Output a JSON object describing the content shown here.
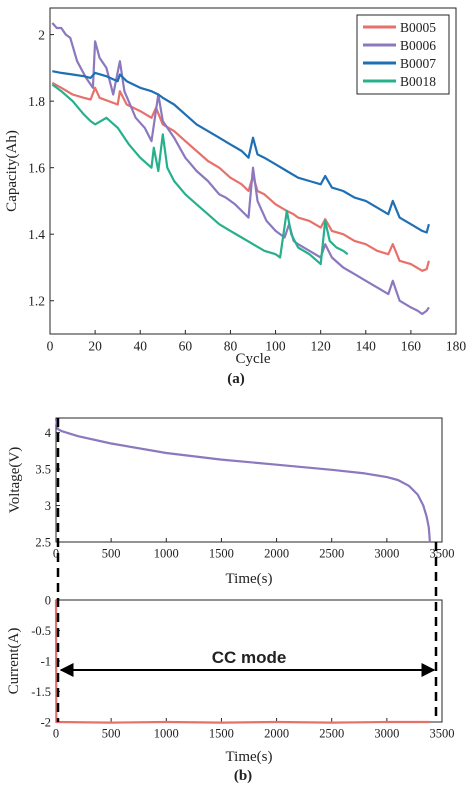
{
  "chart_data": [
    {
      "panel_label": "(a)",
      "type": "line",
      "xlabel": "Cycle",
      "ylabel": "Capacity(Ah)",
      "xlim": [
        0,
        180
      ],
      "ylim": [
        1.1,
        2.08
      ],
      "xticks": [
        0,
        20,
        40,
        60,
        80,
        100,
        120,
        140,
        160,
        180
      ],
      "yticks": [
        1.2,
        1.4,
        1.6,
        1.8,
        2
      ],
      "legend_position": "top-right",
      "series": [
        {
          "name": "B0005",
          "color": "#e8706a",
          "points": [
            [
              1,
              1.855
            ],
            [
              5,
              1.84
            ],
            [
              10,
              1.82
            ],
            [
              15,
              1.81
            ],
            [
              18,
              1.805
            ],
            [
              20,
              1.84
            ],
            [
              22,
              1.81
            ],
            [
              26,
              1.8
            ],
            [
              30,
              1.79
            ],
            [
              31,
              1.83
            ],
            [
              34,
              1.79
            ],
            [
              40,
              1.77
            ],
            [
              45,
              1.75
            ],
            [
              47,
              1.78
            ],
            [
              50,
              1.73
            ],
            [
              55,
              1.71
            ],
            [
              60,
              1.68
            ],
            [
              65,
              1.65
            ],
            [
              70,
              1.62
            ],
            [
              75,
              1.6
            ],
            [
              80,
              1.57
            ],
            [
              85,
              1.55
            ],
            [
              88,
              1.53
            ],
            [
              90,
              1.575
            ],
            [
              92,
              1.53
            ],
            [
              95,
              1.52
            ],
            [
              100,
              1.49
            ],
            [
              105,
              1.47
            ],
            [
              108,
              1.46
            ],
            [
              110,
              1.45
            ],
            [
              115,
              1.44
            ],
            [
              120,
              1.42
            ],
            [
              122,
              1.445
            ],
            [
              125,
              1.41
            ],
            [
              130,
              1.4
            ],
            [
              135,
              1.38
            ],
            [
              140,
              1.37
            ],
            [
              145,
              1.35
            ],
            [
              150,
              1.34
            ],
            [
              152,
              1.37
            ],
            [
              155,
              1.32
            ],
            [
              160,
              1.31
            ],
            [
              165,
              1.29
            ],
            [
              167,
              1.295
            ],
            [
              168,
              1.32
            ]
          ]
        },
        {
          "name": "B0006",
          "color": "#8b78be",
          "points": [
            [
              1,
              2.035
            ],
            [
              3,
              2.02
            ],
            [
              5,
              2.02
            ],
            [
              7,
              2.0
            ],
            [
              9,
              1.99
            ],
            [
              12,
              1.92
            ],
            [
              16,
              1.87
            ],
            [
              19,
              1.84
            ],
            [
              20,
              1.98
            ],
            [
              22,
              1.93
            ],
            [
              25,
              1.9
            ],
            [
              28,
              1.82
            ],
            [
              31,
              1.92
            ],
            [
              33,
              1.83
            ],
            [
              38,
              1.75
            ],
            [
              42,
              1.72
            ],
            [
              45,
              1.68
            ],
            [
              48,
              1.82
            ],
            [
              50,
              1.74
            ],
            [
              55,
              1.69
            ],
            [
              60,
              1.63
            ],
            [
              65,
              1.59
            ],
            [
              70,
              1.56
            ],
            [
              75,
              1.52
            ],
            [
              78,
              1.51
            ],
            [
              82,
              1.49
            ],
            [
              85,
              1.47
            ],
            [
              88,
              1.45
            ],
            [
              90,
              1.6
            ],
            [
              92,
              1.5
            ],
            [
              96,
              1.44
            ],
            [
              100,
              1.41
            ],
            [
              104,
              1.39
            ],
            [
              106,
              1.43
            ],
            [
              108,
              1.38
            ],
            [
              110,
              1.37
            ],
            [
              115,
              1.35
            ],
            [
              120,
              1.33
            ],
            [
              122,
              1.37
            ],
            [
              125,
              1.33
            ],
            [
              130,
              1.3
            ],
            [
              135,
              1.28
            ],
            [
              140,
              1.26
            ],
            [
              145,
              1.24
            ],
            [
              150,
              1.22
            ],
            [
              152,
              1.26
            ],
            [
              155,
              1.2
            ],
            [
              160,
              1.18
            ],
            [
              163,
              1.17
            ],
            [
              165,
              1.16
            ],
            [
              167,
              1.17
            ],
            [
              168,
              1.18
            ]
          ]
        },
        {
          "name": "B0007",
          "color": "#1f6fb4",
          "points": [
            [
              1,
              1.89
            ],
            [
              5,
              1.885
            ],
            [
              10,
              1.88
            ],
            [
              15,
              1.875
            ],
            [
              18,
              1.87
            ],
            [
              20,
              1.885
            ],
            [
              25,
              1.875
            ],
            [
              30,
              1.86
            ],
            [
              31,
              1.88
            ],
            [
              34,
              1.86
            ],
            [
              40,
              1.84
            ],
            [
              45,
              1.83
            ],
            [
              48,
              1.82
            ],
            [
              50,
              1.81
            ],
            [
              55,
              1.79
            ],
            [
              60,
              1.76
            ],
            [
              65,
              1.73
            ],
            [
              70,
              1.71
            ],
            [
              75,
              1.69
            ],
            [
              80,
              1.67
            ],
            [
              85,
              1.65
            ],
            [
              88,
              1.63
            ],
            [
              90,
              1.69
            ],
            [
              92,
              1.64
            ],
            [
              95,
              1.63
            ],
            [
              100,
              1.61
            ],
            [
              105,
              1.59
            ],
            [
              110,
              1.57
            ],
            [
              115,
              1.56
            ],
            [
              120,
              1.55
            ],
            [
              122,
              1.575
            ],
            [
              125,
              1.54
            ],
            [
              130,
              1.53
            ],
            [
              135,
              1.51
            ],
            [
              140,
              1.5
            ],
            [
              145,
              1.48
            ],
            [
              150,
              1.46
            ],
            [
              152,
              1.5
            ],
            [
              155,
              1.45
            ],
            [
              160,
              1.43
            ],
            [
              165,
              1.41
            ],
            [
              167,
              1.405
            ],
            [
              168,
              1.43
            ]
          ]
        },
        {
          "name": "B0018",
          "color": "#26b08c",
          "points": [
            [
              1,
              1.85
            ],
            [
              5,
              1.83
            ],
            [
              10,
              1.8
            ],
            [
              15,
              1.76
            ],
            [
              18,
              1.74
            ],
            [
              20,
              1.73
            ],
            [
              25,
              1.75
            ],
            [
              30,
              1.72
            ],
            [
              35,
              1.67
            ],
            [
              40,
              1.63
            ],
            [
              45,
              1.6
            ],
            [
              46,
              1.66
            ],
            [
              48,
              1.59
            ],
            [
              50,
              1.7
            ],
            [
              52,
              1.6
            ],
            [
              55,
              1.56
            ],
            [
              60,
              1.52
            ],
            [
              65,
              1.49
            ],
            [
              70,
              1.46
            ],
            [
              75,
              1.43
            ],
            [
              80,
              1.41
            ],
            [
              85,
              1.39
            ],
            [
              90,
              1.37
            ],
            [
              95,
              1.35
            ],
            [
              100,
              1.34
            ],
            [
              102,
              1.33
            ],
            [
              105,
              1.47
            ],
            [
              107,
              1.4
            ],
            [
              110,
              1.36
            ],
            [
              115,
              1.34
            ],
            [
              120,
              1.31
            ],
            [
              122,
              1.44
            ],
            [
              124,
              1.38
            ],
            [
              127,
              1.36
            ],
            [
              130,
              1.35
            ],
            [
              132,
              1.34
            ]
          ]
        }
      ]
    },
    {
      "panel_label": "(b)",
      "type": "line",
      "xlabel": "Time(s)",
      "ylabel": "Voltage(V)",
      "xlim": [
        0,
        3500
      ],
      "ylim": [
        2.5,
        4.2
      ],
      "xticks": [
        0,
        500,
        1000,
        1500,
        2000,
        2500,
        3000,
        3500
      ],
      "yticks": [
        2.5,
        3,
        3.5,
        4
      ],
      "series": [
        {
          "color": "#8b78be",
          "points": [
            [
              0,
              4.19
            ],
            [
              15,
              4.05
            ],
            [
              50,
              4.02
            ],
            [
              200,
              3.95
            ],
            [
              500,
              3.85
            ],
            [
              1000,
              3.72
            ],
            [
              1500,
              3.63
            ],
            [
              2000,
              3.56
            ],
            [
              2500,
              3.49
            ],
            [
              2800,
              3.44
            ],
            [
              3000,
              3.39
            ],
            [
              3100,
              3.35
            ],
            [
              3200,
              3.27
            ],
            [
              3280,
              3.15
            ],
            [
              3330,
              3.0
            ],
            [
              3360,
              2.85
            ],
            [
              3380,
              2.7
            ],
            [
              3390,
              2.5
            ]
          ]
        }
      ]
    },
    {
      "type": "line",
      "xlabel": "Time(s)",
      "ylabel": "Current(A)",
      "xlim": [
        0,
        3500
      ],
      "ylim": [
        -2,
        0
      ],
      "xticks": [
        0,
        500,
        1000,
        1500,
        2000,
        2500,
        3000,
        3500
      ],
      "yticks": [
        -2,
        -1.5,
        -1,
        -0.5,
        0
      ],
      "annotation": "CC mode",
      "series": [
        {
          "color": "#e8706a",
          "points": [
            [
              0,
              0
            ],
            [
              3,
              -2.0
            ],
            [
              500,
              -2.01
            ],
            [
              1000,
              -2.0
            ],
            [
              1500,
              -2.01
            ],
            [
              2000,
              -2.0
            ],
            [
              2500,
              -2.01
            ],
            [
              3000,
              -2.0
            ],
            [
              3390,
              -2.0
            ]
          ]
        }
      ]
    }
  ]
}
